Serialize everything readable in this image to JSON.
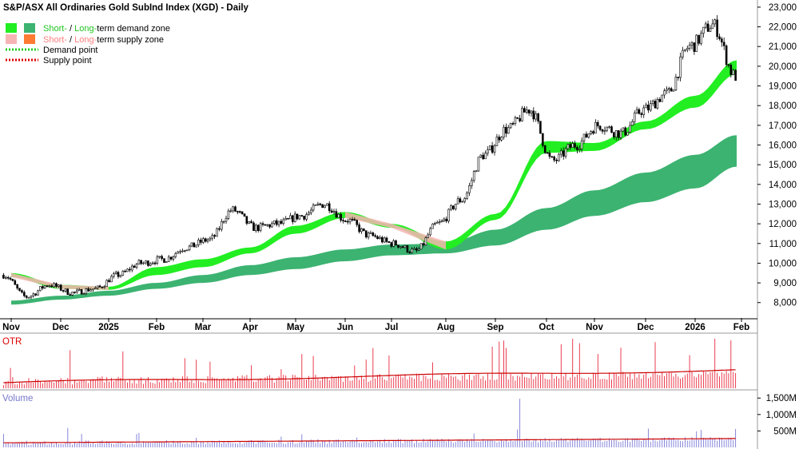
{
  "chart_data": {
    "type": "candlestick",
    "title": "S&P/ASX All Ordinaries Gold SubInd Index (XGD) - Daily",
    "legend": {
      "demand_zone": {
        "short": "Short-",
        "sep": " / ",
        "long": "Long-",
        "rest": "term demand zone"
      },
      "supply_zone": {
        "short": "Short-",
        "sep": " / ",
        "long": "Long-",
        "rest": "term supply zone"
      },
      "demand_point": "Demand point",
      "supply_point": "Supply point"
    },
    "x_ticks": [
      "Nov",
      "Dec",
      "2025",
      "Feb",
      "Mar",
      "Apr",
      "May",
      "Jun",
      "Jul",
      "Aug",
      "Sep",
      "Oct",
      "Nov",
      "Dec",
      "2026",
      "Feb"
    ],
    "y_ticks": [
      "23,000",
      "22,000",
      "21,000",
      "20,000",
      "19,000",
      "18,000",
      "17,000",
      "16,000",
      "15,000",
      "14,000",
      "13,000",
      "12,000",
      "11,000",
      "10,000",
      "9,000",
      "8,000"
    ],
    "ylim": [
      7300,
      23200
    ],
    "price_anchors": [
      {
        "date": "Nov",
        "close": 9400
      },
      {
        "date": "Nov-mid",
        "close": 8300
      },
      {
        "date": "Dec",
        "close": 8900
      },
      {
        "date": "Dec-late",
        "close": 8500
      },
      {
        "date": "2025",
        "close": 8700
      },
      {
        "date": "Jan-mid",
        "close": 9400
      },
      {
        "date": "Feb",
        "close": 10000
      },
      {
        "date": "Mar",
        "close": 10200
      },
      {
        "date": "Mar-late",
        "close": 10800
      },
      {
        "date": "Apr",
        "close": 11200
      },
      {
        "date": "Apr-mid",
        "close": 12700
      },
      {
        "date": "Apr-late",
        "close": 11800
      },
      {
        "date": "May",
        "close": 12000
      },
      {
        "date": "May-late",
        "close": 12400
      },
      {
        "date": "Jun",
        "close": 13000
      },
      {
        "date": "Jun-late",
        "close": 12200
      },
      {
        "date": "Jul",
        "close": 11400
      },
      {
        "date": "Jul-late",
        "close": 11000
      },
      {
        "date": "Aug",
        "close": 10600
      },
      {
        "date": "Aug-mid",
        "close": 12000
      },
      {
        "date": "Sep",
        "close": 13200
      },
      {
        "date": "Sep-late",
        "close": 15500
      },
      {
        "date": "Oct",
        "close": 16800
      },
      {
        "date": "Oct-mid",
        "close": 17800
      },
      {
        "date": "Oct-late",
        "close": 15200
      },
      {
        "date": "Nov",
        "close": 16000
      },
      {
        "date": "Nov-mid",
        "close": 17000
      },
      {
        "date": "Dec",
        "close": 16600
      },
      {
        "date": "Dec-mid",
        "close": 17800
      },
      {
        "date": "2026",
        "close": 18600
      },
      {
        "date": "Jan-mid",
        "close": 21000
      },
      {
        "date": "Jan-late",
        "close": 22100
      },
      {
        "date": "Feb",
        "close": 19500
      }
    ],
    "short_term_zone": [
      {
        "date": "Nov",
        "lo": 9300,
        "hi": 9500
      },
      {
        "date": "Dec",
        "lo": 8700,
        "hi": 8900
      },
      {
        "date": "2025",
        "lo": 8650,
        "hi": 8800
      },
      {
        "date": "Feb",
        "lo": 9400,
        "hi": 9800
      },
      {
        "date": "Mar",
        "lo": 9800,
        "hi": 10200
      },
      {
        "date": "Apr",
        "lo": 10500,
        "hi": 10800
      },
      {
        "date": "May",
        "lo": 11500,
        "hi": 11900
      },
      {
        "date": "Jun",
        "lo": 12300,
        "hi": 12600
      },
      {
        "date": "Jul",
        "lo": 11800,
        "hi": 12000
      },
      {
        "date": "Aug",
        "lo": 10700,
        "hi": 11100
      },
      {
        "date": "Sep",
        "lo": 12200,
        "hi": 12500
      },
      {
        "date": "Oct",
        "lo": 15600,
        "hi": 16200
      },
      {
        "date": "Nov",
        "lo": 15700,
        "hi": 16100
      },
      {
        "date": "Dec",
        "lo": 16800,
        "hi": 17200
      },
      {
        "date": "2026",
        "lo": 17900,
        "hi": 18500
      },
      {
        "date": "Feb",
        "lo": 19600,
        "hi": 20300
      }
    ],
    "long_term_zone": [
      {
        "date": "Nov",
        "lo": 7900,
        "hi": 8100
      },
      {
        "date": "Dec",
        "lo": 8150,
        "hi": 8350
      },
      {
        "date": "2025",
        "lo": 8350,
        "hi": 8600
      },
      {
        "date": "Feb",
        "lo": 8700,
        "hi": 9000
      },
      {
        "date": "Mar",
        "lo": 9000,
        "hi": 9400
      },
      {
        "date": "Apr",
        "lo": 9400,
        "hi": 9900
      },
      {
        "date": "May",
        "lo": 9700,
        "hi": 10300
      },
      {
        "date": "Jun",
        "lo": 10100,
        "hi": 10700
      },
      {
        "date": "Jul",
        "lo": 10400,
        "hi": 10950
      },
      {
        "date": "Aug",
        "lo": 10500,
        "hi": 11000
      },
      {
        "date": "Sep",
        "lo": 10900,
        "hi": 11700
      },
      {
        "date": "Oct",
        "lo": 11700,
        "hi": 12800
      },
      {
        "date": "Nov",
        "lo": 12400,
        "hi": 13700
      },
      {
        "date": "Dec",
        "lo": 13100,
        "hi": 14600
      },
      {
        "date": "2026",
        "lo": 13800,
        "hi": 15500
      },
      {
        "date": "Feb",
        "lo": 14900,
        "hi": 16500
      }
    ],
    "otr_label": "OTR",
    "volume_label": "Volume",
    "volume_ticks": [
      "1,500M",
      "1,000M",
      "500M"
    ],
    "volume_ylim": [
      0,
      1700
    ],
    "colors": {
      "short_demand": "#22ee22",
      "long_demand": "#3cb371",
      "short_supply": "#f7b4b4",
      "long_supply": "#ff7a33",
      "demand_point": "#22cc22",
      "supply_point": "#dd0000",
      "otr_bars": "#e8283c",
      "otr_avg": "#cc0000",
      "volume_bars": "#7a7ad8",
      "volume_avg": "#cc0000"
    }
  }
}
